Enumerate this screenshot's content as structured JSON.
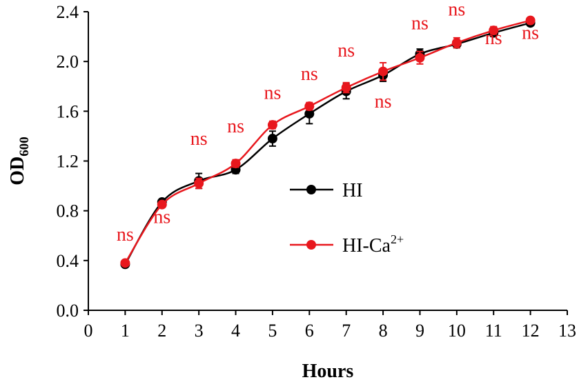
{
  "chart_data": {
    "type": "line",
    "title": "",
    "xlabel": "Hours",
    "ylabel_main": "OD",
    "ylabel_sub": "600",
    "xlim": [
      0,
      13
    ],
    "ylim": [
      0,
      2.4
    ],
    "x_ticks": [
      0,
      1,
      2,
      3,
      4,
      5,
      6,
      7,
      8,
      9,
      10,
      11,
      12,
      13
    ],
    "y_ticks": [
      0.0,
      0.4,
      0.8,
      1.2,
      1.6,
      2.0,
      2.4
    ],
    "y_tick_labels": [
      "0.0",
      "0.4",
      "0.8",
      "1.2",
      "1.6",
      "2.0",
      "2.4"
    ],
    "grid": false,
    "legend_position": "center-right",
    "series": [
      {
        "name": "HI",
        "name_base": "HI",
        "name_sup": "",
        "color": "#000000",
        "x": [
          1,
          2,
          3,
          4,
          5,
          6,
          7,
          8,
          9,
          10,
          11,
          12
        ],
        "values": [
          0.37,
          0.87,
          1.04,
          1.13,
          1.38,
          1.58,
          1.76,
          1.89,
          2.06,
          2.14,
          2.23,
          2.31
        ],
        "errors": [
          0.02,
          0.02,
          0.06,
          0.03,
          0.06,
          0.08,
          0.06,
          0.05,
          0.04,
          0.03,
          0.03,
          0.02
        ]
      },
      {
        "name": "HI-Ca2+",
        "name_base": "HI-Ca",
        "name_sup": "2+",
        "color": "#e8171d",
        "x": [
          1,
          2,
          3,
          4,
          5,
          6,
          7,
          8,
          9,
          10,
          11,
          12
        ],
        "values": [
          0.38,
          0.85,
          1.02,
          1.18,
          1.49,
          1.64,
          1.79,
          1.92,
          2.03,
          2.15,
          2.25,
          2.33
        ],
        "errors": [
          0.02,
          0.02,
          0.04,
          0.03,
          0.03,
          0.03,
          0.04,
          0.07,
          0.05,
          0.04,
          0.03,
          0.02
        ]
      }
    ],
    "annotations": [
      {
        "text": "ns",
        "x": 1,
        "y": 0.56
      },
      {
        "text": "ns",
        "x": 2,
        "y": 0.7
      },
      {
        "text": "ns",
        "x": 3,
        "y": 1.33
      },
      {
        "text": "ns",
        "x": 4,
        "y": 1.43
      },
      {
        "text": "ns",
        "x": 5,
        "y": 1.7
      },
      {
        "text": "ns",
        "x": 6,
        "y": 1.85
      },
      {
        "text": "ns",
        "x": 7,
        "y": 2.04
      },
      {
        "text": "ns",
        "x": 8,
        "y": 1.63
      },
      {
        "text": "ns",
        "x": 9,
        "y": 2.26
      },
      {
        "text": "ns",
        "x": 10,
        "y": 2.37
      },
      {
        "text": "ns",
        "x": 11,
        "y": 2.14
      },
      {
        "text": "ns",
        "x": 12,
        "y": 2.18
      }
    ]
  }
}
